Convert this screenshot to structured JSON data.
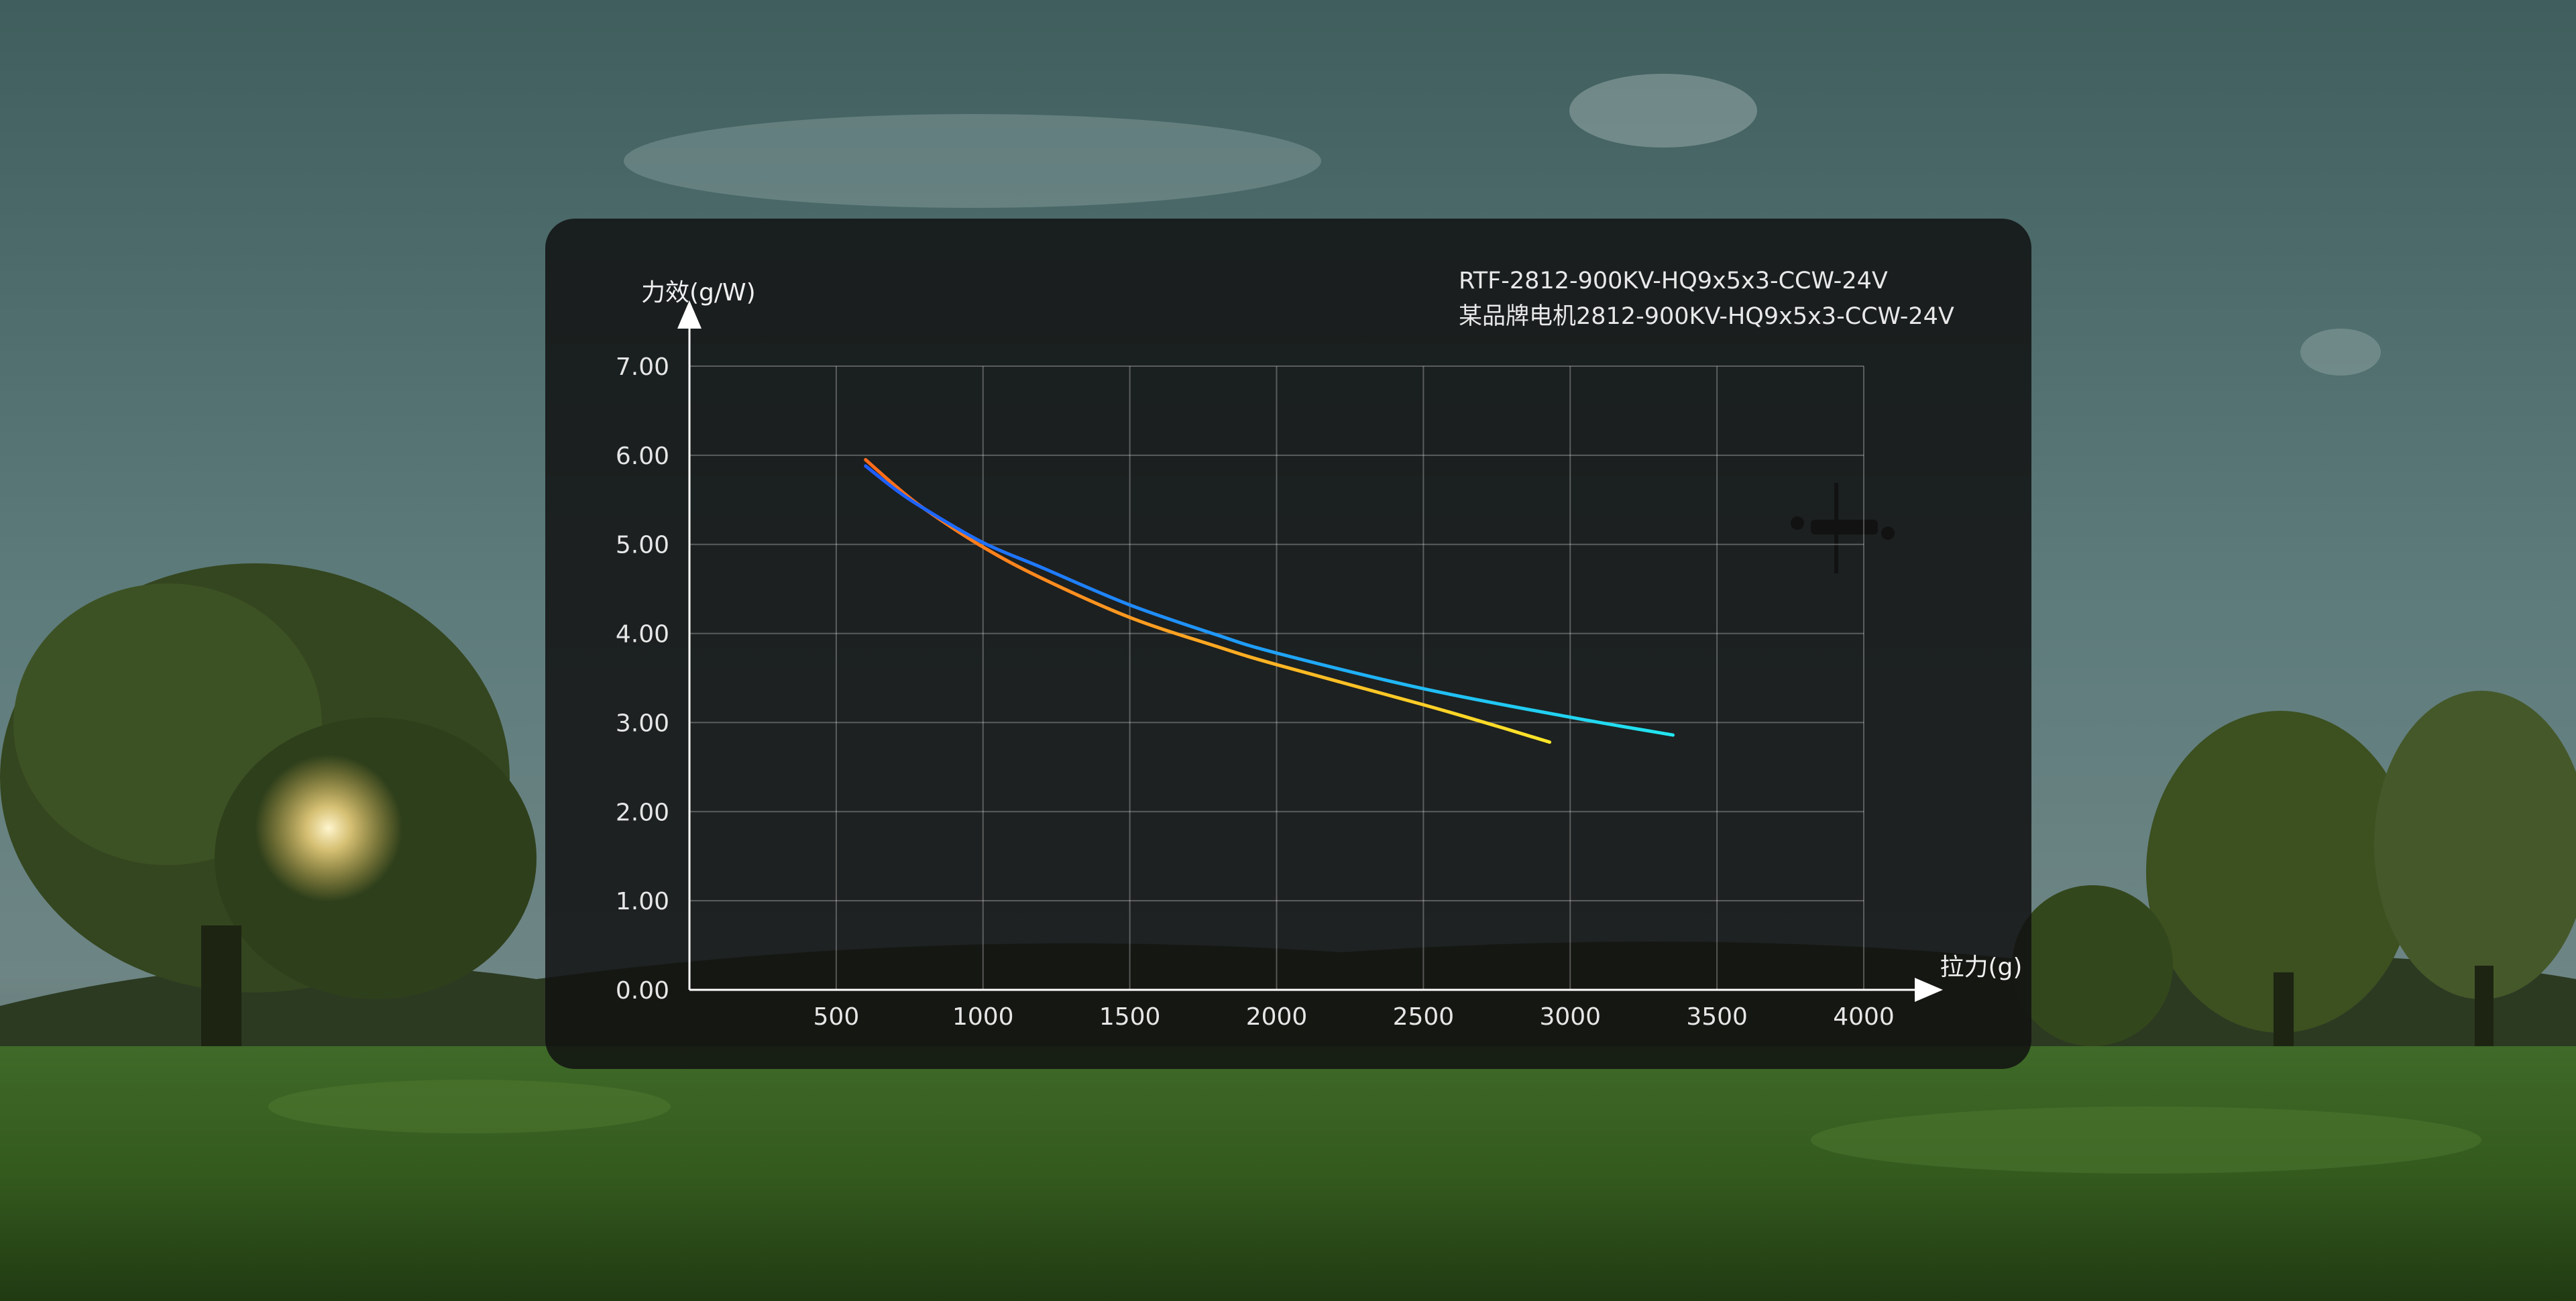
{
  "colors": {
    "panel_bg": "#121212",
    "grid": "#5a5a5a",
    "axis": "#ffffff",
    "series1_start": "#1e5cff",
    "series1_end": "#22e6f0",
    "series2_start": "#ff6a1a",
    "series2_end": "#ffe62a"
  },
  "chart_data": {
    "type": "line",
    "title": "",
    "xlabel": "拉力(g)",
    "ylabel": "力效(g/W)",
    "xlim": [
      0,
      4000
    ],
    "ylim": [
      0,
      7
    ],
    "x_ticks": [
      500,
      1000,
      1500,
      2000,
      2500,
      3000,
      3500,
      4000
    ],
    "x_tick_labels": [
      "500",
      "1000",
      "1500",
      "2000",
      "2500",
      "3000",
      "3500",
      "4000"
    ],
    "y_ticks": [
      0,
      1,
      2,
      3,
      4,
      5,
      6,
      7
    ],
    "y_tick_labels": [
      "0.00",
      "1.00",
      "2.00",
      "3.00",
      "4.00",
      "5.00",
      "6.00",
      "7.00"
    ],
    "grid": true,
    "legend_position": "top-right",
    "series": [
      {
        "name": "RTF-2812-900KV-HQ9x5x3-CCW-24V",
        "x": [
          600,
          700,
          800,
          1000,
          1200,
          1500,
          1800,
          2000,
          2500,
          3000,
          3350
        ],
        "y": [
          5.88,
          5.62,
          5.4,
          5.02,
          4.74,
          4.32,
          3.98,
          3.78,
          3.38,
          3.06,
          2.86
        ]
      },
      {
        "name": "某品牌电机2812-900KV-HQ9x5x3-CCW-24V",
        "x": [
          600,
          700,
          800,
          1000,
          1200,
          1500,
          1800,
          2000,
          2500,
          2750,
          2930
        ],
        "y": [
          5.95,
          5.66,
          5.4,
          4.97,
          4.62,
          4.18,
          3.85,
          3.65,
          3.2,
          2.96,
          2.78
        ]
      }
    ]
  }
}
